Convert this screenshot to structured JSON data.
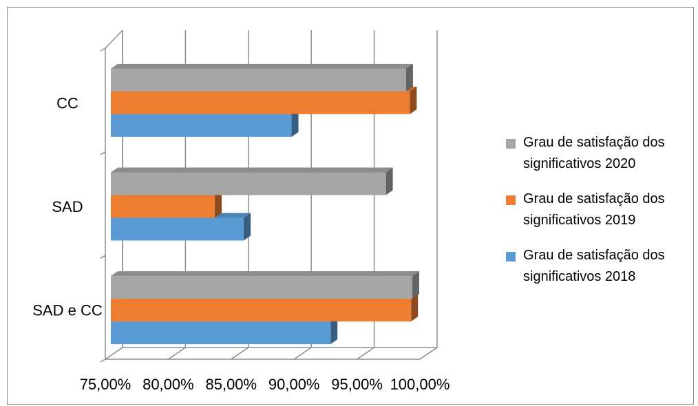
{
  "chart_data": {
    "type": "bar",
    "orientation": "horizontal",
    "title": "",
    "xlabel": "",
    "ylabel": "",
    "categories": [
      "SAD e CC",
      "SAD",
      "CC"
    ],
    "series": [
      {
        "name": "Grau de satisfação dos significativos 2018",
        "color": "#5B9BD5",
        "values": [
          92.9,
          86.0,
          89.8
        ]
      },
      {
        "name": "Grau de satisfação dos significativos 2019",
        "color": "#ED7D31",
        "values": [
          99.3,
          83.7,
          99.2
        ]
      },
      {
        "name": "Grau de satisfação dos significativos 2020",
        "color": "#A5A5A5",
        "values": [
          99.4,
          97.3,
          98.9
        ]
      }
    ],
    "x_ticks": [
      "75,00%",
      "80,00%",
      "85,00%",
      "90,00%",
      "95,00%",
      "100,00%"
    ],
    "xlim": [
      75,
      100
    ],
    "grid": true,
    "legend_position": "right",
    "style": "3d-clustered-bar"
  }
}
